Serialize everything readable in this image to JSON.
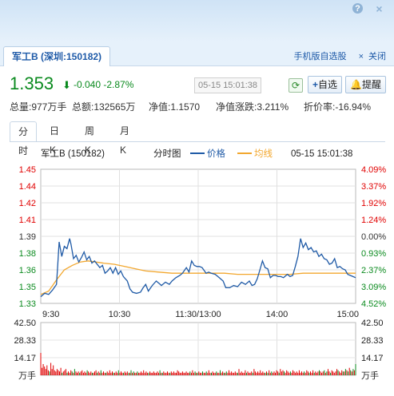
{
  "window": {
    "help": "?",
    "close": "×"
  },
  "tab": {
    "label": "军工B (深圳:150182)"
  },
  "links": {
    "mobile": "手机版自选股",
    "close": "关闭"
  },
  "quote": {
    "price": "1.353",
    "change": "-0.040",
    "change_pct": "-2.87%",
    "timestamp": "05-15 15:01:38",
    "color_down": "#0a8a1e",
    "color_up": "#e00000"
  },
  "buttons": {
    "add_watch": "自选",
    "alert": "提醒"
  },
  "stats": {
    "volume": "总量:977万手",
    "amount": "总额:132565万",
    "nav": "净值:1.1570",
    "nav_change": "净值涨跌:3.211%",
    "premium": "折价率:-16.94%"
  },
  "subtabs": [
    "分时",
    "日K",
    "周K",
    "月K"
  ],
  "chart_data": {
    "type": "line",
    "title": "分时图",
    "stock_label": "军工B (150182)",
    "time_label": "05-15 15:01:38",
    "legend": [
      {
        "name": "价格",
        "color": "#1f5aa6"
      },
      {
        "name": "均线",
        "color": "#f2a72e"
      }
    ],
    "price_ticks": [
      "1.45",
      "1.44",
      "1.42",
      "1.41",
      "1.39",
      "1.38",
      "1.36",
      "1.35",
      "1.33"
    ],
    "pct_ticks": [
      "4.09%",
      "3.37%",
      "1.92%",
      "1.24%",
      "0.00%",
      "0.93%",
      "2.37%",
      "3.09%",
      "4.52%"
    ],
    "pct_colors": [
      "#e00000",
      "#e00000",
      "#e00000",
      "#e00000",
      "#333333",
      "#0a8a1e",
      "#0a8a1e",
      "#0a8a1e",
      "#0a8a1e"
    ],
    "price_colors": [
      "#e00000",
      "#e00000",
      "#e00000",
      "#e00000",
      "#333333",
      "#0a8a1e",
      "#0a8a1e",
      "#0a8a1e",
      "#0a8a1e"
    ],
    "x_ticks": [
      "9:30",
      "10:30",
      "11:30/13:00",
      "14:00",
      "15:00"
    ],
    "ylim": [
      1.33,
      1.45
    ],
    "minutes": 240,
    "price": [
      [
        0,
        1.336
      ],
      [
        3,
        1.339
      ],
      [
        6,
        1.338
      ],
      [
        9,
        1.342
      ],
      [
        12,
        1.347
      ],
      [
        13,
        1.365
      ],
      [
        14,
        1.385
      ],
      [
        16,
        1.372
      ],
      [
        18,
        1.381
      ],
      [
        20,
        1.379
      ],
      [
        22,
        1.388
      ],
      [
        23,
        1.383
      ],
      [
        25,
        1.37
      ],
      [
        27,
        1.373
      ],
      [
        29,
        1.367
      ],
      [
        31,
        1.371
      ],
      [
        33,
        1.376
      ],
      [
        35,
        1.369
      ],
      [
        37,
        1.372
      ],
      [
        39,
        1.366
      ],
      [
        41,
        1.368
      ],
      [
        43,
        1.365
      ],
      [
        45,
        1.362
      ],
      [
        47,
        1.364
      ],
      [
        49,
        1.357
      ],
      [
        51,
        1.359
      ],
      [
        53,
        1.362
      ],
      [
        55,
        1.357
      ],
      [
        57,
        1.362
      ],
      [
        59,
        1.356
      ],
      [
        61,
        1.359
      ],
      [
        63,
        1.354
      ],
      [
        66,
        1.35
      ],
      [
        68,
        1.343
      ],
      [
        70,
        1.34
      ],
      [
        73,
        1.339
      ],
      [
        76,
        1.34
      ],
      [
        78,
        1.344
      ],
      [
        80,
        1.347
      ],
      [
        82,
        1.341
      ],
      [
        85,
        1.346
      ],
      [
        88,
        1.35
      ],
      [
        90,
        1.348
      ],
      [
        92,
        1.346
      ],
      [
        95,
        1.349
      ],
      [
        98,
        1.347
      ],
      [
        100,
        1.35
      ],
      [
        103,
        1.353
      ],
      [
        106,
        1.355
      ],
      [
        108,
        1.357
      ],
      [
        111,
        1.362
      ],
      [
        113,
        1.358
      ],
      [
        115,
        1.368
      ],
      [
        117,
        1.364
      ],
      [
        119,
        1.363
      ],
      [
        121,
        1.363
      ],
      [
        123,
        1.362
      ],
      [
        126,
        1.357
      ],
      [
        128,
        1.358
      ],
      [
        130,
        1.357
      ],
      [
        133,
        1.356
      ],
      [
        136,
        1.353
      ],
      [
        139,
        1.35
      ],
      [
        141,
        1.344
      ],
      [
        144,
        1.344
      ],
      [
        147,
        1.346
      ],
      [
        150,
        1.345
      ],
      [
        153,
        1.349
      ],
      [
        156,
        1.347
      ],
      [
        159,
        1.35
      ],
      [
        161,
        1.346
      ],
      [
        163,
        1.347
      ],
      [
        165,
        1.352
      ],
      [
        167,
        1.36
      ],
      [
        169,
        1.368
      ],
      [
        171,
        1.362
      ],
      [
        173,
        1.361
      ],
      [
        175,
        1.353
      ],
      [
        177,
        1.355
      ],
      [
        179,
        1.355
      ],
      [
        181,
        1.354
      ],
      [
        183,
        1.354
      ],
      [
        185,
        1.353
      ],
      [
        188,
        1.356
      ],
      [
        190,
        1.354
      ],
      [
        192,
        1.355
      ],
      [
        194,
        1.363
      ],
      [
        196,
        1.372
      ],
      [
        198,
        1.388
      ],
      [
        200,
        1.38
      ],
      [
        202,
        1.384
      ],
      [
        204,
        1.378
      ],
      [
        206,
        1.38
      ],
      [
        208,
        1.376
      ],
      [
        210,
        1.377
      ],
      [
        212,
        1.372
      ],
      [
        214,
        1.374
      ],
      [
        216,
        1.37
      ],
      [
        218,
        1.369
      ],
      [
        220,
        1.365
      ],
      [
        222,
        1.366
      ],
      [
        224,
        1.37
      ],
      [
        226,
        1.362
      ],
      [
        228,
        1.363
      ],
      [
        230,
        1.361
      ],
      [
        232,
        1.36
      ],
      [
        234,
        1.356
      ],
      [
        236,
        1.355
      ],
      [
        238,
        1.354
      ],
      [
        240,
        1.353
      ]
    ],
    "avg": [
      [
        0,
        1.338
      ],
      [
        6,
        1.341
      ],
      [
        12,
        1.351
      ],
      [
        18,
        1.36
      ],
      [
        24,
        1.364
      ],
      [
        30,
        1.367
      ],
      [
        36,
        1.368
      ],
      [
        42,
        1.367
      ],
      [
        48,
        1.366
      ],
      [
        56,
        1.365
      ],
      [
        64,
        1.363
      ],
      [
        72,
        1.361
      ],
      [
        80,
        1.359
      ],
      [
        90,
        1.358
      ],
      [
        100,
        1.357
      ],
      [
        110,
        1.357
      ],
      [
        120,
        1.357
      ],
      [
        130,
        1.357
      ],
      [
        140,
        1.357
      ],
      [
        150,
        1.356
      ],
      [
        160,
        1.356
      ],
      [
        170,
        1.356
      ],
      [
        180,
        1.356
      ],
      [
        190,
        1.356
      ],
      [
        200,
        1.357
      ],
      [
        210,
        1.357
      ],
      [
        220,
        1.357
      ],
      [
        230,
        1.357
      ],
      [
        240,
        1.357
      ]
    ],
    "vol_ticks": [
      "42.50",
      "28.33",
      "14.17",
      "万手"
    ],
    "vol_max": 42.5,
    "volume_seed": [
      18,
      6,
      9,
      7,
      5,
      8,
      4,
      3,
      10,
      5,
      8,
      4,
      3,
      5,
      4,
      3,
      6,
      2,
      3,
      4,
      5,
      2,
      3,
      2,
      4,
      3,
      2,
      5,
      3,
      2,
      3,
      2,
      3,
      4,
      2,
      3,
      2,
      4,
      3,
      2,
      3,
      2,
      2,
      3,
      4,
      2,
      3,
      2,
      4,
      2,
      3,
      2,
      2,
      3,
      2,
      4,
      2,
      3,
      2,
      2,
      3,
      2,
      4,
      2,
      3,
      2,
      2,
      3,
      2,
      3,
      2,
      2,
      4,
      2,
      3,
      2,
      2,
      3,
      2,
      2,
      3,
      2,
      4,
      2,
      3,
      2,
      2,
      3,
      2,
      2,
      3,
      2,
      2,
      3,
      2,
      4,
      2,
      2,
      3,
      2,
      2,
      3,
      2,
      2,
      3,
      2,
      3,
      2,
      2,
      4,
      3,
      2,
      2,
      3,
      2,
      2,
      3,
      2,
      2,
      3,
      2,
      4,
      2,
      3,
      2,
      2,
      3,
      2,
      2,
      3,
      2,
      2,
      3,
      2,
      4,
      2,
      2,
      3,
      2,
      2,
      3,
      2,
      2,
      4,
      2,
      3,
      2,
      2,
      3,
      2,
      4,
      2,
      3,
      2,
      2,
      3,
      2,
      2,
      5,
      2,
      3,
      2,
      2,
      4,
      2,
      3,
      2,
      2,
      3,
      2,
      5,
      3,
      2,
      3,
      2,
      4,
      2,
      3,
      2,
      2,
      3,
      2,
      4,
      2,
      3,
      2,
      3,
      2,
      4,
      3,
      2,
      5,
      3,
      4,
      3,
      2,
      4,
      3,
      2,
      3,
      2,
      4,
      3,
      2,
      3,
      2,
      4,
      2,
      3,
      2,
      3,
      2,
      4,
      3,
      2,
      3,
      2,
      4,
      2,
      3,
      2,
      3,
      4,
      3,
      2,
      3,
      4,
      2,
      3,
      5,
      3,
      2,
      4,
      3,
      2,
      3,
      5,
      4,
      3,
      2,
      4,
      3,
      3,
      5,
      4,
      3,
      6,
      4,
      3,
      5,
      4,
      9
    ],
    "vol_colors": {
      "up": "#e00000",
      "down": "#0a8a1e"
    }
  }
}
